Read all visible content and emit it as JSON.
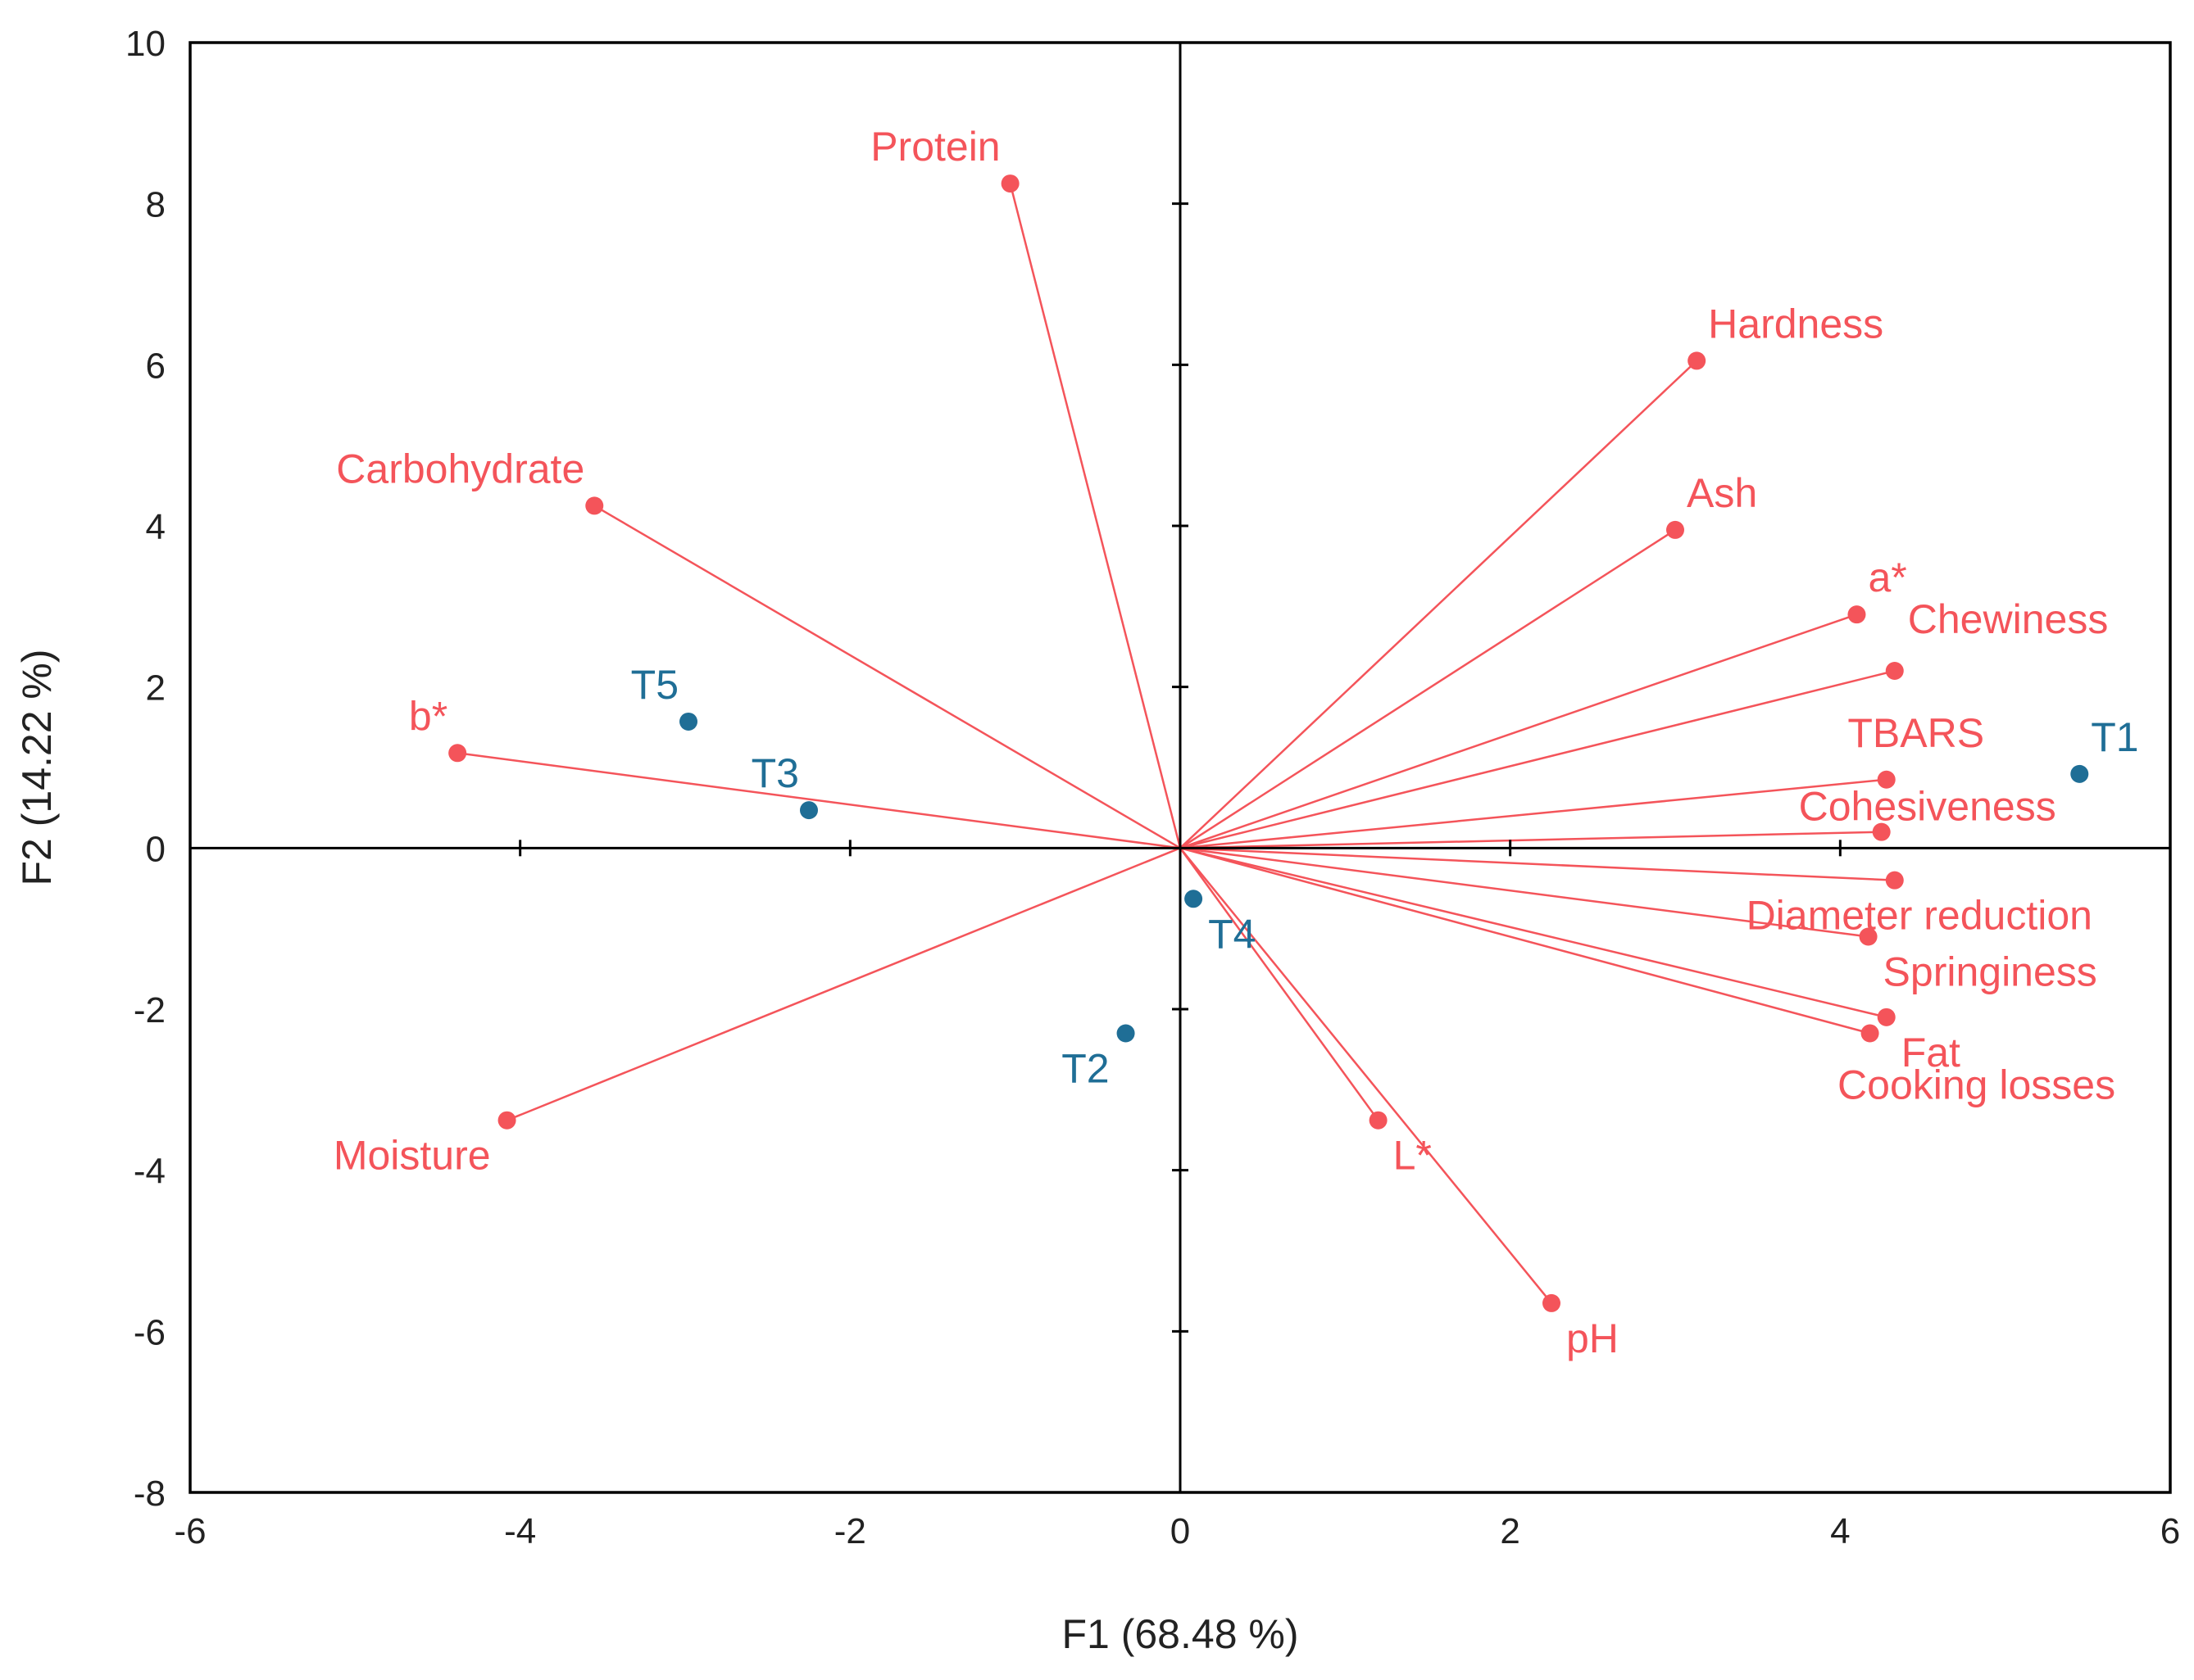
{
  "chart_data": {
    "type": "scatter",
    "subtype": "pca-biplot",
    "xlabel": "F1 (68.48 %)",
    "ylabel": "F2 (14.22 %)",
    "xlim": [
      -6,
      6
    ],
    "ylim": [
      -8,
      10
    ],
    "x_ticks": [
      -6,
      -4,
      -2,
      0,
      2,
      4,
      6
    ],
    "y_ticks": [
      -8,
      -6,
      -4,
      -2,
      0,
      2,
      4,
      6,
      8,
      10
    ],
    "x_tick_labels": [
      "-6",
      "-4",
      "-2",
      "0",
      "2",
      "4",
      "6"
    ],
    "y_tick_labels": [
      "-8",
      "-6",
      "-4",
      "-2",
      "0",
      "2",
      "4",
      "6",
      "8",
      "10"
    ],
    "grid": false,
    "colors": {
      "variables": "#f4545a",
      "observations": "#1f6e96",
      "axes": "#000000"
    },
    "variables": [
      {
        "name": "Protein",
        "x": -1.03,
        "y": 8.25,
        "label_pos": "above-left"
      },
      {
        "name": "Hardness",
        "x": 3.13,
        "y": 6.05,
        "label_pos": "above-right"
      },
      {
        "name": "Carbohydrate",
        "x": -3.55,
        "y": 4.25,
        "label_pos": "above-left"
      },
      {
        "name": "Ash",
        "x": 3.0,
        "y": 3.95,
        "label_pos": "above-right"
      },
      {
        "name": "a*",
        "x": 4.1,
        "y": 2.9,
        "label_pos": "above-right"
      },
      {
        "name": "Chewiness",
        "x": 4.33,
        "y": 2.2,
        "label_pos": "above-right-far"
      },
      {
        "name": "b*",
        "x": -4.38,
        "y": 1.18,
        "label_pos": "above-left"
      },
      {
        "name": "TBARS",
        "x": 4.28,
        "y": 0.85,
        "label_pos": "above"
      },
      {
        "name": "Cohesiveness",
        "x": 4.25,
        "y": 0.2,
        "label_pos": "above-tight"
      },
      {
        "name": "Diameter reduction",
        "x": 4.33,
        "y": -0.4,
        "label_pos": "below"
      },
      {
        "name": "Springiness",
        "x": 4.17,
        "y": -1.1,
        "label_pos": "below-right"
      },
      {
        "name": "Fat",
        "x": 4.28,
        "y": -2.1,
        "label_pos": "below-right"
      },
      {
        "name": "Cooking losses",
        "x": 4.18,
        "y": -2.3,
        "label_pos": "below-far"
      },
      {
        "name": "Moisture",
        "x": -4.08,
        "y": -3.38,
        "label_pos": "below-left"
      },
      {
        "name": "L*",
        "x": 1.2,
        "y": -3.38,
        "label_pos": "below-right"
      },
      {
        "name": "pH",
        "x": 2.25,
        "y": -5.65,
        "label_pos": "below-right"
      }
    ],
    "observations": [
      {
        "name": "T1",
        "x": 5.45,
        "y": 0.92,
        "label_pos": "above-right"
      },
      {
        "name": "T2",
        "x": -0.33,
        "y": -2.3,
        "label_pos": "below-left"
      },
      {
        "name": "T3",
        "x": -2.25,
        "y": 0.47,
        "label_pos": "above-left"
      },
      {
        "name": "T4",
        "x": 0.08,
        "y": -0.63,
        "label_pos": "below-right"
      },
      {
        "name": "T5",
        "x": -2.98,
        "y": 1.57,
        "label_pos": "above-left"
      }
    ]
  }
}
